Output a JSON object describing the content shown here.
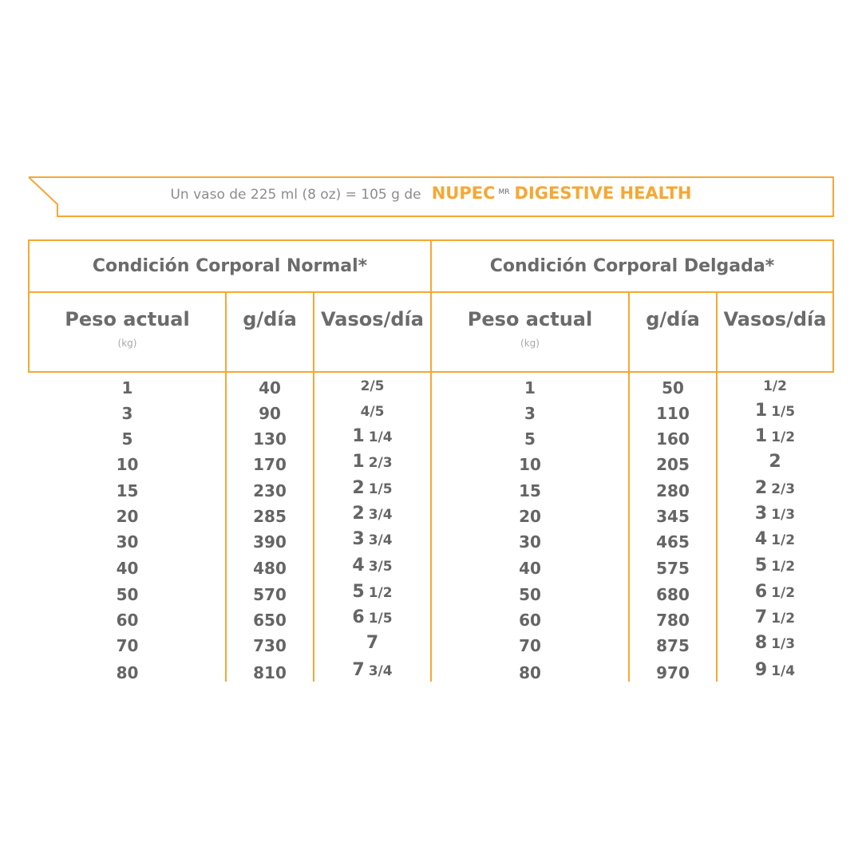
{
  "banner": {
    "text": "Un vaso de 225 ml (8 oz) = 105 g de",
    "brand": "NUPEC",
    "brand_mark": "MR",
    "product": "DIGESTIVE HEALTH"
  },
  "accent_color": "#f6a733",
  "sections": [
    {
      "title": "Condición Corporal Normal*",
      "headers": {
        "peso": "Peso actual",
        "peso_unit": "(kg)",
        "gdia": "g/día",
        "vasos": "Vasos/día"
      },
      "rows": [
        [
          "1",
          "40",
          "",
          "2/5"
        ],
        [
          "3",
          "90",
          "",
          "4/5"
        ],
        [
          "5",
          "130",
          "1",
          "1/4"
        ],
        [
          "10",
          "170",
          "1",
          "2/3"
        ],
        [
          "15",
          "230",
          "2",
          "1/5"
        ],
        [
          "20",
          "285",
          "2",
          "3/4"
        ],
        [
          "30",
          "390",
          "3",
          "3/4"
        ],
        [
          "40",
          "480",
          "4",
          "3/5"
        ],
        [
          "50",
          "570",
          "5",
          "1/2"
        ],
        [
          "60",
          "650",
          "6",
          "1/5"
        ],
        [
          "70",
          "730",
          "7",
          ""
        ],
        [
          "80",
          "810",
          "7",
          "3/4"
        ]
      ]
    },
    {
      "title": "Condición Corporal Delgada*",
      "headers": {
        "peso": "Peso actual",
        "peso_unit": "(kg)",
        "gdia": "g/día",
        "vasos": "Vasos/día"
      },
      "rows": [
        [
          "1",
          "50",
          "",
          "1/2"
        ],
        [
          "3",
          "110",
          "1",
          "1/5"
        ],
        [
          "5",
          "160",
          "1",
          "1/2"
        ],
        [
          "10",
          "205",
          "2",
          ""
        ],
        [
          "15",
          "280",
          "2",
          "2/3"
        ],
        [
          "20",
          "345",
          "3",
          "1/3"
        ],
        [
          "30",
          "465",
          "4",
          "1/2"
        ],
        [
          "40",
          "575",
          "5",
          "1/2"
        ],
        [
          "50",
          "680",
          "6",
          "1/2"
        ],
        [
          "60",
          "780",
          "7",
          "1/2"
        ],
        [
          "70",
          "875",
          "8",
          "1/3"
        ],
        [
          "80",
          "970",
          "9",
          "1/4"
        ]
      ]
    }
  ]
}
